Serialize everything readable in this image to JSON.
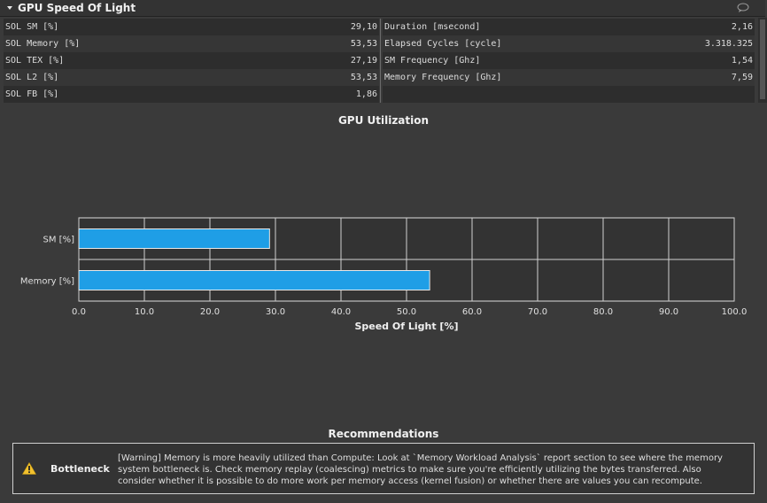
{
  "section": {
    "title": "GPU Speed Of Light"
  },
  "metrics": {
    "left": [
      {
        "label": "SOL SM [%]",
        "value": "29,10"
      },
      {
        "label": "SOL Memory [%]",
        "value": "53,53"
      },
      {
        "label": "SOL TEX [%]",
        "value": "27,19"
      },
      {
        "label": "SOL L2 [%]",
        "value": "53,53"
      },
      {
        "label": "SOL FB [%]",
        "value": "1,86"
      }
    ],
    "right": [
      {
        "label": "Duration [msecond]",
        "value": "2,16"
      },
      {
        "label": "Elapsed Cycles [cycle]",
        "value": "3.318.325"
      },
      {
        "label": "SM Frequency [Ghz]",
        "value": "1,54"
      },
      {
        "label": "Memory Frequency [Ghz]",
        "value": "7,59"
      }
    ]
  },
  "chart_data": {
    "type": "bar",
    "orientation": "horizontal",
    "title": "GPU Utilization",
    "categories": [
      "SM [%]",
      "Memory [%]"
    ],
    "values": [
      29.1,
      53.53
    ],
    "xlabel": "Speed Of Light [%]",
    "ylabel": "",
    "xlim": [
      0,
      100
    ],
    "xticks": [
      "0.0",
      "10.0",
      "20.0",
      "30.0",
      "40.0",
      "50.0",
      "60.0",
      "70.0",
      "80.0",
      "90.0",
      "100.0"
    ],
    "grid": true,
    "bar_color": "#1f9ee6"
  },
  "recommendations": {
    "title": "Recommendations",
    "items": [
      {
        "icon": "warning-icon",
        "label": "Bottleneck",
        "text": "[Warning] Memory is more heavily utilized than Compute: Look at `Memory Workload Analysis` report section to see where the memory system bottleneck is. Check memory replay (coalescing) metrics to make sure you're efficiently utilizing the bytes transferred. Also consider whether it is possible to do more work per memory access (kernel fusion) or whether there are values you can recompute."
      }
    ]
  }
}
